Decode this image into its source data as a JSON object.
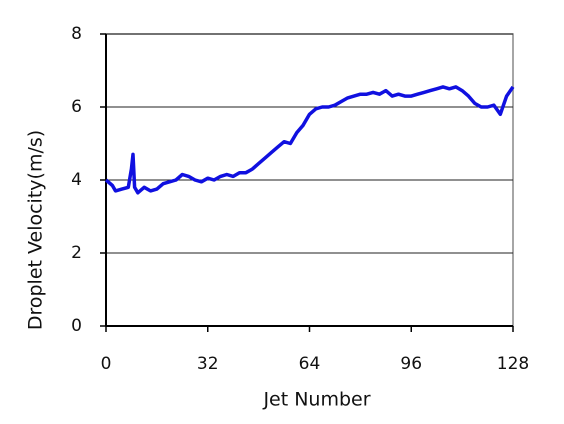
{
  "chart_data": {
    "type": "line",
    "x_label": "Jet Number",
    "y_label": "Droplet Velocity(m/s)",
    "xlim": [
      0,
      128
    ],
    "xticks": [
      0,
      32,
      64,
      96,
      128
    ],
    "ylim": [
      0,
      8
    ],
    "yticks": [
      0,
      2,
      4,
      6,
      8
    ],
    "grid": true,
    "series": [
      {
        "color": "#1010e0",
        "x": [
          0,
          2,
          3,
          5,
          7,
          8,
          8.5,
          9,
          10,
          12,
          14,
          16,
          18,
          20,
          22,
          24,
          26,
          28,
          30,
          32,
          34,
          36,
          38,
          40,
          42,
          44,
          46,
          48,
          50,
          52,
          54,
          56,
          58,
          60,
          62,
          64,
          66,
          68,
          70,
          72,
          74,
          76,
          78,
          80,
          82,
          84,
          86,
          88,
          90,
          92,
          94,
          96,
          98,
          100,
          102,
          104,
          106,
          108,
          110,
          112,
          114,
          116,
          118,
          120,
          122,
          124,
          126,
          128
        ],
        "values": [
          4.0,
          3.85,
          3.7,
          3.75,
          3.8,
          4.3,
          4.7,
          3.8,
          3.65,
          3.8,
          3.7,
          3.75,
          3.9,
          3.95,
          4.0,
          4.15,
          4.1,
          4.0,
          3.95,
          4.05,
          4.0,
          4.1,
          4.15,
          4.1,
          4.2,
          4.2,
          4.3,
          4.45,
          4.6,
          4.75,
          4.9,
          5.05,
          5.0,
          5.3,
          5.5,
          5.8,
          5.95,
          6.0,
          6.0,
          6.05,
          6.15,
          6.25,
          6.3,
          6.35,
          6.35,
          6.4,
          6.35,
          6.45,
          6.3,
          6.35,
          6.3,
          6.3,
          6.35,
          6.4,
          6.45,
          6.5,
          6.55,
          6.5,
          6.55,
          6.45,
          6.3,
          6.1,
          6.0,
          6.0,
          6.05,
          5.8,
          6.3,
          6.55
        ]
      }
    ]
  }
}
